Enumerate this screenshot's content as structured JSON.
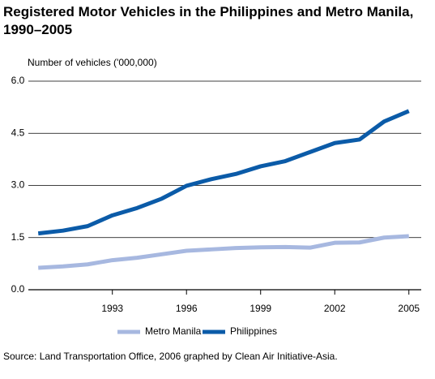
{
  "chart_data": {
    "type": "line",
    "title": "Registered Motor Vehicles in the Philippines and Metro Manila, 1990–2005",
    "y_label": "Number of vehicles ('000,000)",
    "source": "Source: Land Transportation Office, 2006 graphed by Clean Air Initiative-Asia.",
    "x": [
      1990,
      1991,
      1992,
      1993,
      1994,
      1995,
      1996,
      1997,
      1998,
      1999,
      2000,
      2001,
      2002,
      2003,
      2004,
      2005
    ],
    "series": [
      {
        "name": "Metro Manila",
        "color": "#a7b8e0",
        "values": [
          0.63,
          0.67,
          0.73,
          0.85,
          0.92,
          1.02,
          1.12,
          1.16,
          1.2,
          1.22,
          1.23,
          1.21,
          1.35,
          1.36,
          1.5,
          1.54
        ]
      },
      {
        "name": "Philippines",
        "color": "#0b5ba8",
        "values": [
          1.62,
          1.7,
          1.83,
          2.14,
          2.35,
          2.62,
          2.99,
          3.18,
          3.33,
          3.55,
          3.7,
          3.96,
          4.22,
          4.32,
          4.84,
          5.14
        ]
      }
    ],
    "xlim": [
      1989.6,
      2005.5
    ],
    "xticks": [
      1993,
      1996,
      1999,
      2002,
      2005
    ],
    "ylim": [
      0,
      6
    ],
    "yticks": [
      {
        "value": 0,
        "label": "0.0"
      },
      1.5,
      {
        "value": 3,
        "label": "3.0"
      },
      4.5,
      {
        "value": 6,
        "label": "6.0"
      }
    ],
    "grid": true,
    "legend": "bottom"
  }
}
